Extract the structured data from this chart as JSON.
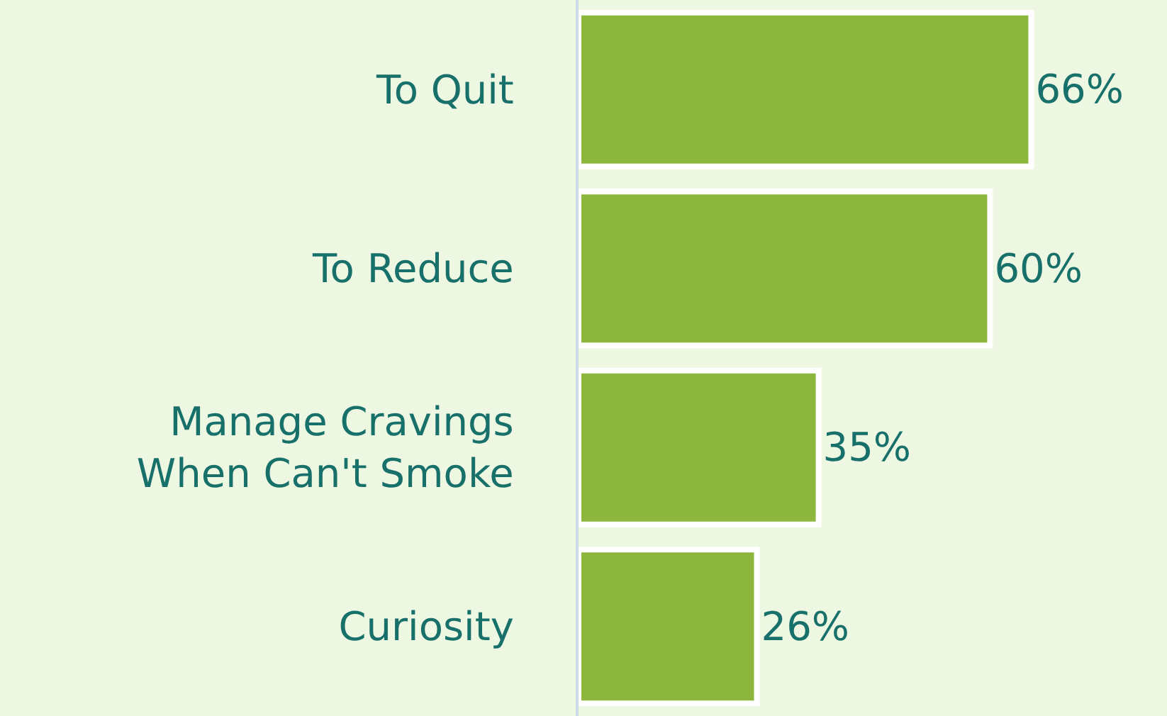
{
  "chart_data": {
    "type": "bar",
    "orientation": "horizontal",
    "categories": [
      "To Quit",
      "To Reduce",
      "Manage Cravings When Can't Smoke",
      "Curiosity"
    ],
    "values": [
      66,
      60,
      35,
      26
    ],
    "value_labels": [
      "66%",
      "60%",
      "35%",
      "26%"
    ],
    "color": "#8cb63c",
    "legend": false,
    "grid": false
  }
}
